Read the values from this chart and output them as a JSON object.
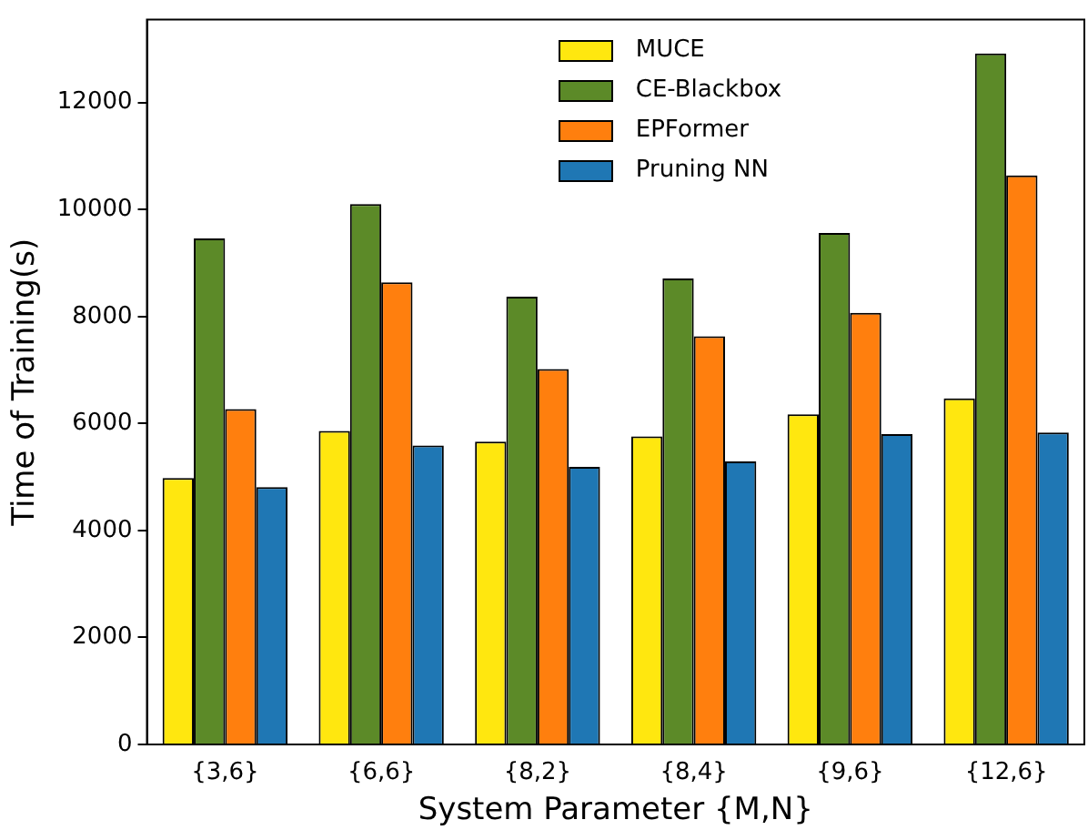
{
  "chart_data": {
    "type": "bar",
    "xlabel": "System Parameter {M,N}",
    "ylabel": "Time of Training(s)",
    "categories": [
      "{3,6}",
      "{6,6}",
      "{8,2}",
      "{8,4}",
      "{9,6}",
      "{12,6}"
    ],
    "series": [
      {
        "name": "MUCE",
        "color": "#ffe70f",
        "values": [
          4980,
          5860,
          5660,
          5760,
          6170,
          6470
        ]
      },
      {
        "name": "CE-Blackbox",
        "color": "#5c8a28",
        "values": [
          9460,
          10100,
          8370,
          8710,
          9560,
          12920
        ]
      },
      {
        "name": "EPFormer",
        "color": "#ff7f0e",
        "values": [
          6270,
          8640,
          7020,
          7630,
          8070,
          10640
        ]
      },
      {
        "name": "Pruning NN",
        "color": "#1f77b4",
        "values": [
          4810,
          5590,
          5190,
          5290,
          5800,
          5830
        ]
      }
    ],
    "ylim": [
      0,
      13550
    ],
    "yticks": [
      0,
      2000,
      4000,
      6000,
      8000,
      10000,
      12000
    ],
    "grid": false,
    "legend": "top"
  }
}
